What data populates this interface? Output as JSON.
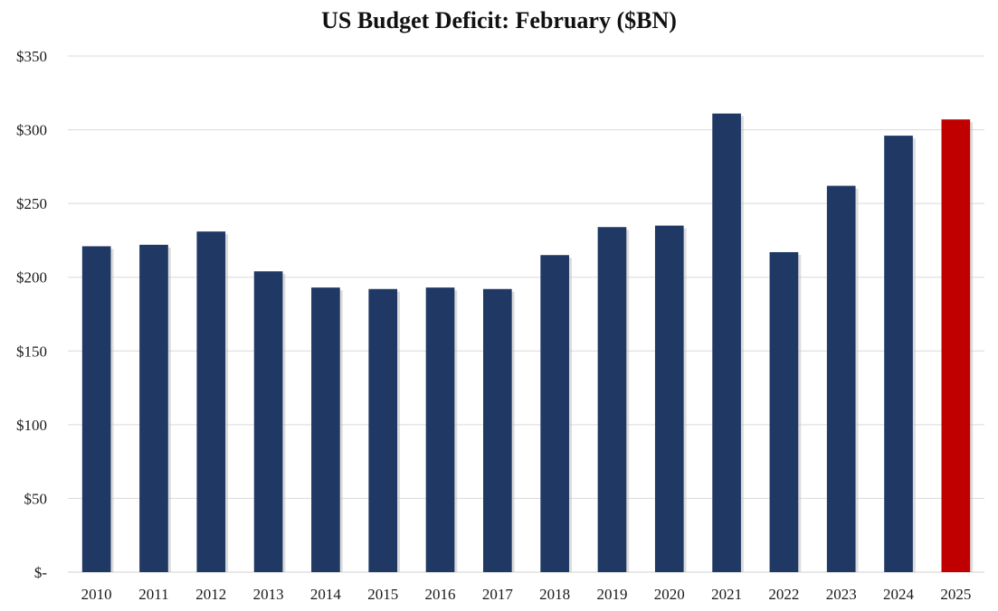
{
  "chart_data": {
    "type": "bar",
    "title": "US Budget Deficit: February ($BN)",
    "xlabel": "",
    "ylabel": "",
    "categories": [
      "2010",
      "2011",
      "2012",
      "2013",
      "2014",
      "2015",
      "2016",
      "2017",
      "2018",
      "2019",
      "2020",
      "2021",
      "2022",
      "2023",
      "2024",
      "2025"
    ],
    "values": [
      221,
      222,
      231,
      204,
      193,
      192,
      193,
      192,
      215,
      234,
      235,
      311,
      217,
      262,
      296,
      307
    ],
    "ylim": [
      0,
      350
    ],
    "yticks": [
      0,
      50,
      100,
      150,
      200,
      250,
      300,
      350
    ],
    "ytick_labels": [
      "$-",
      "$50",
      "$100",
      "$150",
      "$200",
      "$250",
      "$300",
      "$350"
    ],
    "grid": true,
    "legend": "none",
    "colors": {
      "default_bar": "#1f3864",
      "highlight_bar": "#c00000",
      "gridline": "#d9d9d9"
    },
    "highlight_category": "2025"
  }
}
